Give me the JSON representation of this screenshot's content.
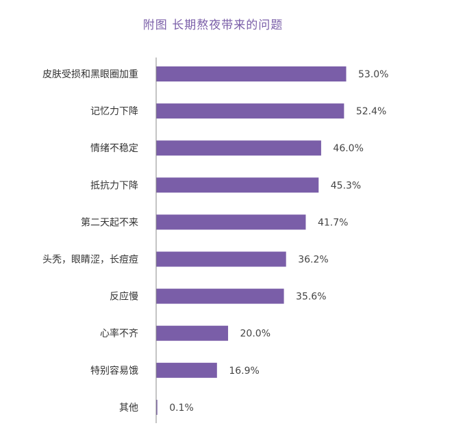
{
  "chart_data": {
    "type": "bar",
    "orientation": "horizontal",
    "title": "附图  长期熬夜带来的问题",
    "categories": [
      "皮肤受损和黑眼圈加重",
      "记忆力下降",
      "情绪不稳定",
      "抵抗力下降",
      "第二天起不来",
      "头秃，眼睛涩，长痘痘",
      "反应慢",
      "心率不齐",
      "特别容易饿",
      "其他"
    ],
    "values": [
      53.0,
      52.4,
      46.0,
      45.3,
      41.7,
      36.2,
      35.6,
      20.0,
      16.9,
      0.1
    ],
    "value_labels": [
      "53.0%",
      "52.4%",
      "46.0%",
      "45.3%",
      "41.7%",
      "36.2%",
      "35.6%",
      "20.0%",
      "16.9%",
      "0.1%"
    ],
    "unit": "%",
    "xlim": [
      0,
      100
    ],
    "grid": false,
    "bar_color": "#7a5ea8",
    "axis_color": "#888888",
    "title_color": "#7a5ea8"
  }
}
